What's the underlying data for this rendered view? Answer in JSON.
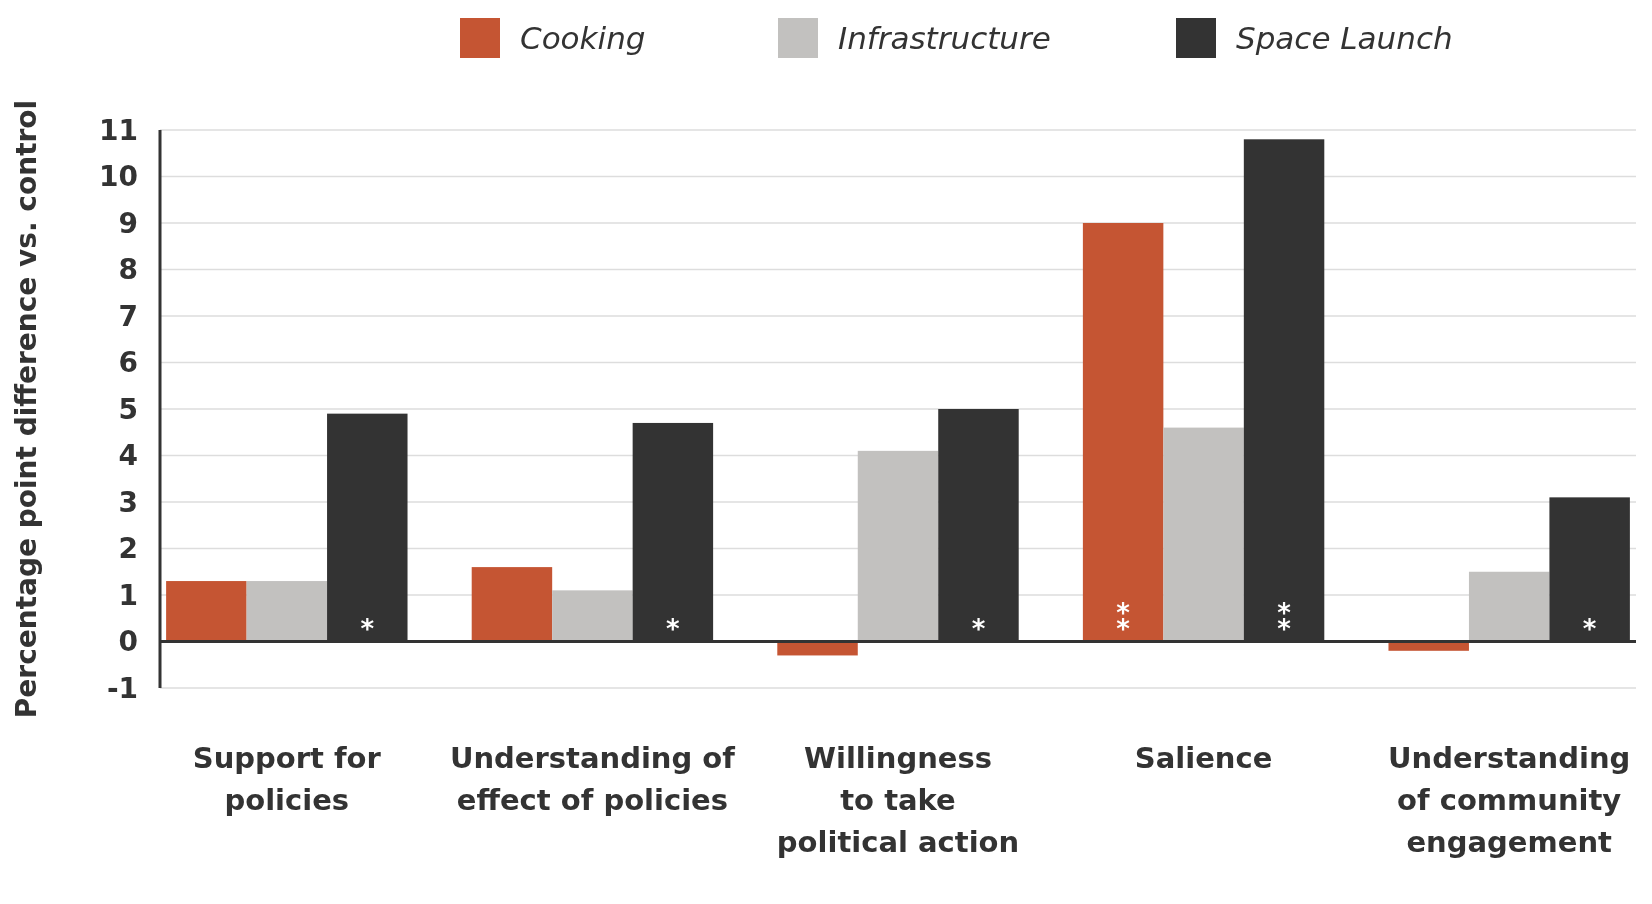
{
  "chart_data": {
    "type": "bar",
    "ylabel": "Percentage point difference vs. control",
    "categories": [
      "Support for\npolicies",
      "Understanding of\neffect of policies",
      "Willingness\nto take\npolitical action",
      "Salience",
      "Understanding\nof community\nengagement"
    ],
    "series": [
      {
        "name": "Cooking",
        "color": "#c55533",
        "values": [
          1.3,
          1.6,
          -0.3,
          9.0,
          -0.2
        ],
        "value_labels": [
          null,
          null,
          null,
          "**",
          null
        ]
      },
      {
        "name": "Infrastructure",
        "color": "#c2c1bf",
        "values": [
          1.3,
          1.1,
          4.1,
          4.6,
          1.5
        ]
      },
      {
        "name": "Space Launch",
        "color": "#333333",
        "values": [
          4.9,
          4.7,
          5.0,
          10.8,
          3.1
        ],
        "value_labels": [
          "*",
          "*",
          "*",
          "**",
          "*"
        ]
      }
    ],
    "ylim": [
      -1,
      11
    ],
    "yticks": [
      -1,
      0,
      1,
      2,
      3,
      4,
      5,
      6,
      7,
      8,
      9,
      10,
      11
    ],
    "grid": "y",
    "legend": "top"
  }
}
